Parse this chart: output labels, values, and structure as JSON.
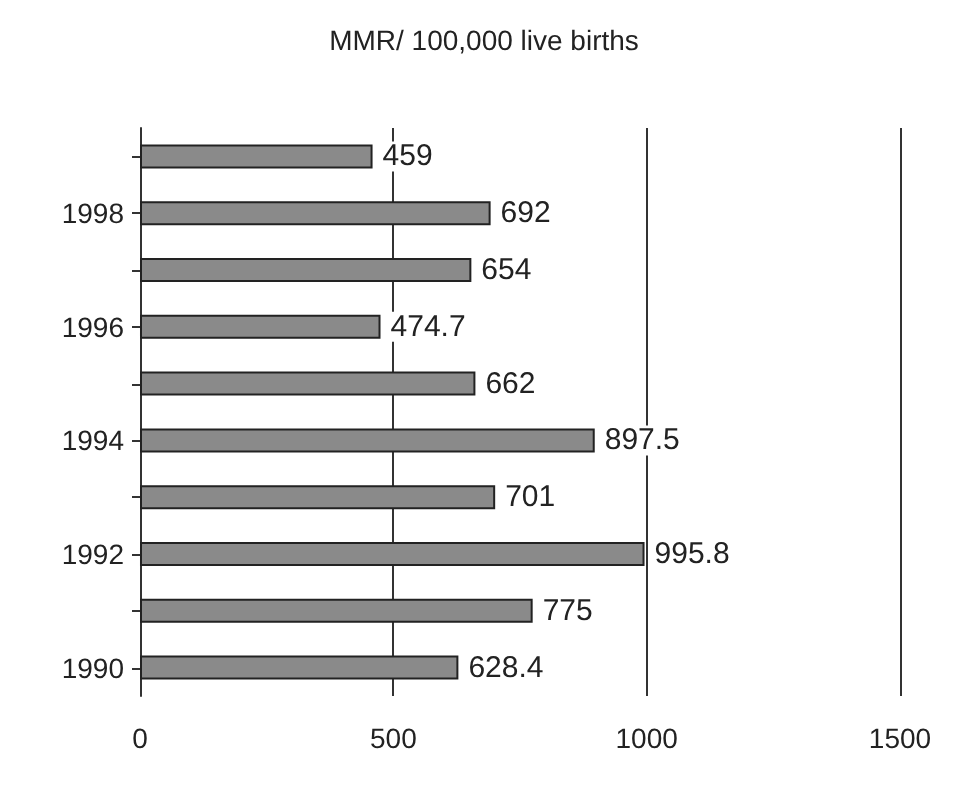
{
  "chart_data": {
    "type": "bar",
    "orientation": "horizontal",
    "title": "MMR/ 100,000 live births",
    "categories": [
      null,
      "1998",
      null,
      "1996",
      null,
      "1994",
      null,
      "1992",
      null,
      "1990"
    ],
    "values": [
      459,
      692,
      654,
      474.7,
      662,
      897.5,
      701,
      995.8,
      775,
      628.4
    ],
    "color": "#8a8a8a",
    "data_labels": true,
    "xlim": [
      0,
      1500
    ],
    "xticks": [
      0,
      500,
      1000,
      1500
    ],
    "grid": "x"
  }
}
